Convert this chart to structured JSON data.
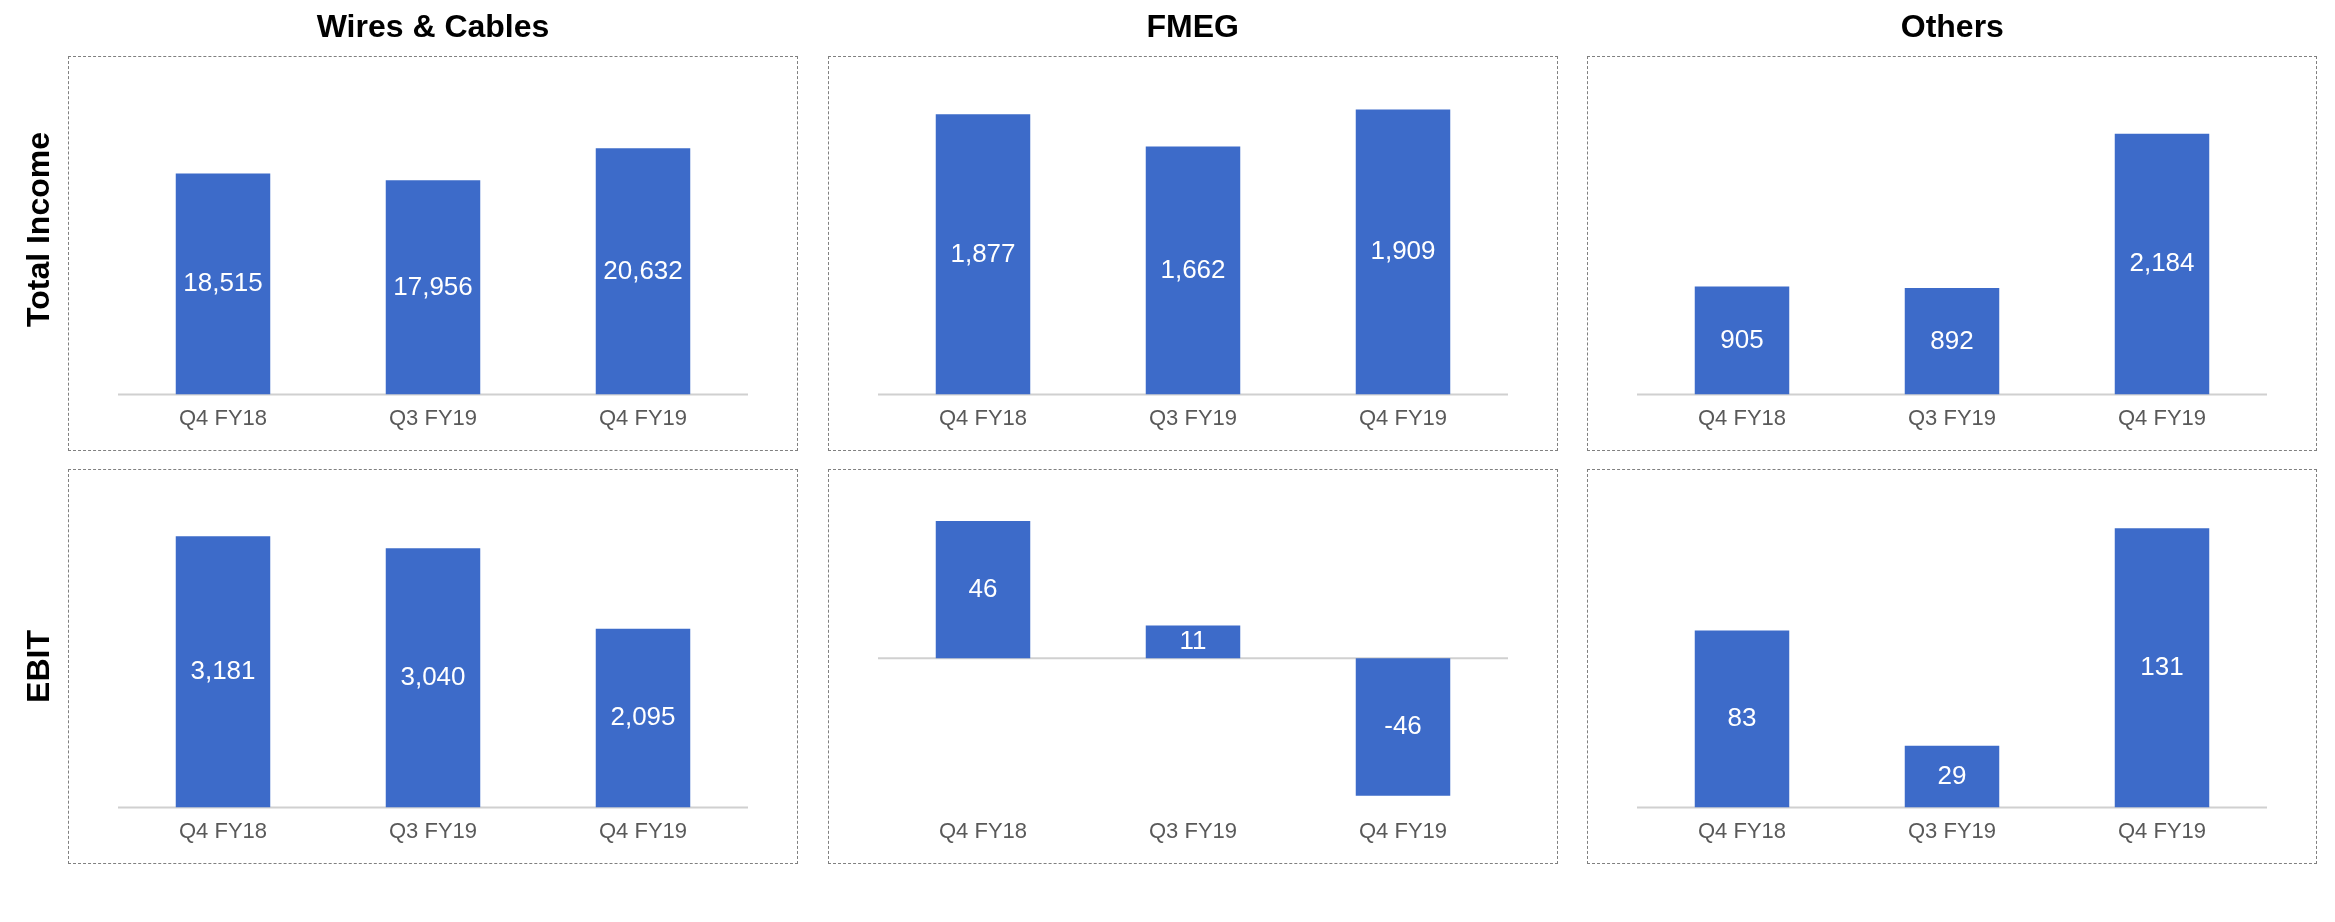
{
  "chart_data": [
    {
      "type": "bar",
      "title": "Wires & Cables",
      "ylabel": "Total Income",
      "categories": [
        "Q4 FY18",
        "Q3 FY19",
        "Q4 FY19"
      ],
      "values": [
        18515,
        17956,
        20632
      ],
      "value_labels": [
        "18,515",
        "17,956",
        "20,632"
      ],
      "color": "#3d6bc9",
      "grid": false,
      "legend": false
    },
    {
      "type": "bar",
      "title": "FMEG",
      "categories": [
        "Q4 FY18",
        "Q3 FY19",
        "Q4 FY19"
      ],
      "values": [
        1877,
        1662,
        1909
      ],
      "value_labels": [
        "1,877",
        "1,662",
        "1,909"
      ],
      "color": "#3d6bc9",
      "grid": false,
      "legend": false
    },
    {
      "type": "bar",
      "title": "Others",
      "categories": [
        "Q4 FY18",
        "Q3 FY19",
        "Q4 FY19"
      ],
      "values": [
        905,
        892,
        2184
      ],
      "value_labels": [
        "905",
        "892",
        "2,184"
      ],
      "color": "#3d6bc9",
      "grid": false,
      "legend": false
    },
    {
      "type": "bar",
      "ylabel": "EBIT",
      "categories": [
        "Q4 FY18",
        "Q3 FY19",
        "Q4 FY19"
      ],
      "values": [
        3181,
        3040,
        2095
      ],
      "value_labels": [
        "3,181",
        "3,040",
        "2,095"
      ],
      "color": "#3d6bc9",
      "grid": false,
      "legend": false
    },
    {
      "type": "bar",
      "categories": [
        "Q4 FY18",
        "Q3 FY19",
        "Q4 FY19"
      ],
      "values": [
        46,
        11,
        -46
      ],
      "value_labels": [
        "46",
        "11",
        "-46"
      ],
      "color": "#3d6bc9",
      "grid": false,
      "legend": false
    },
    {
      "type": "bar",
      "categories": [
        "Q4 FY18",
        "Q3 FY19",
        "Q4 FY19"
      ],
      "values": [
        83,
        29,
        131
      ],
      "value_labels": [
        "83",
        "29",
        "131"
      ],
      "color": "#3d6bc9",
      "grid": false,
      "legend": false
    }
  ]
}
